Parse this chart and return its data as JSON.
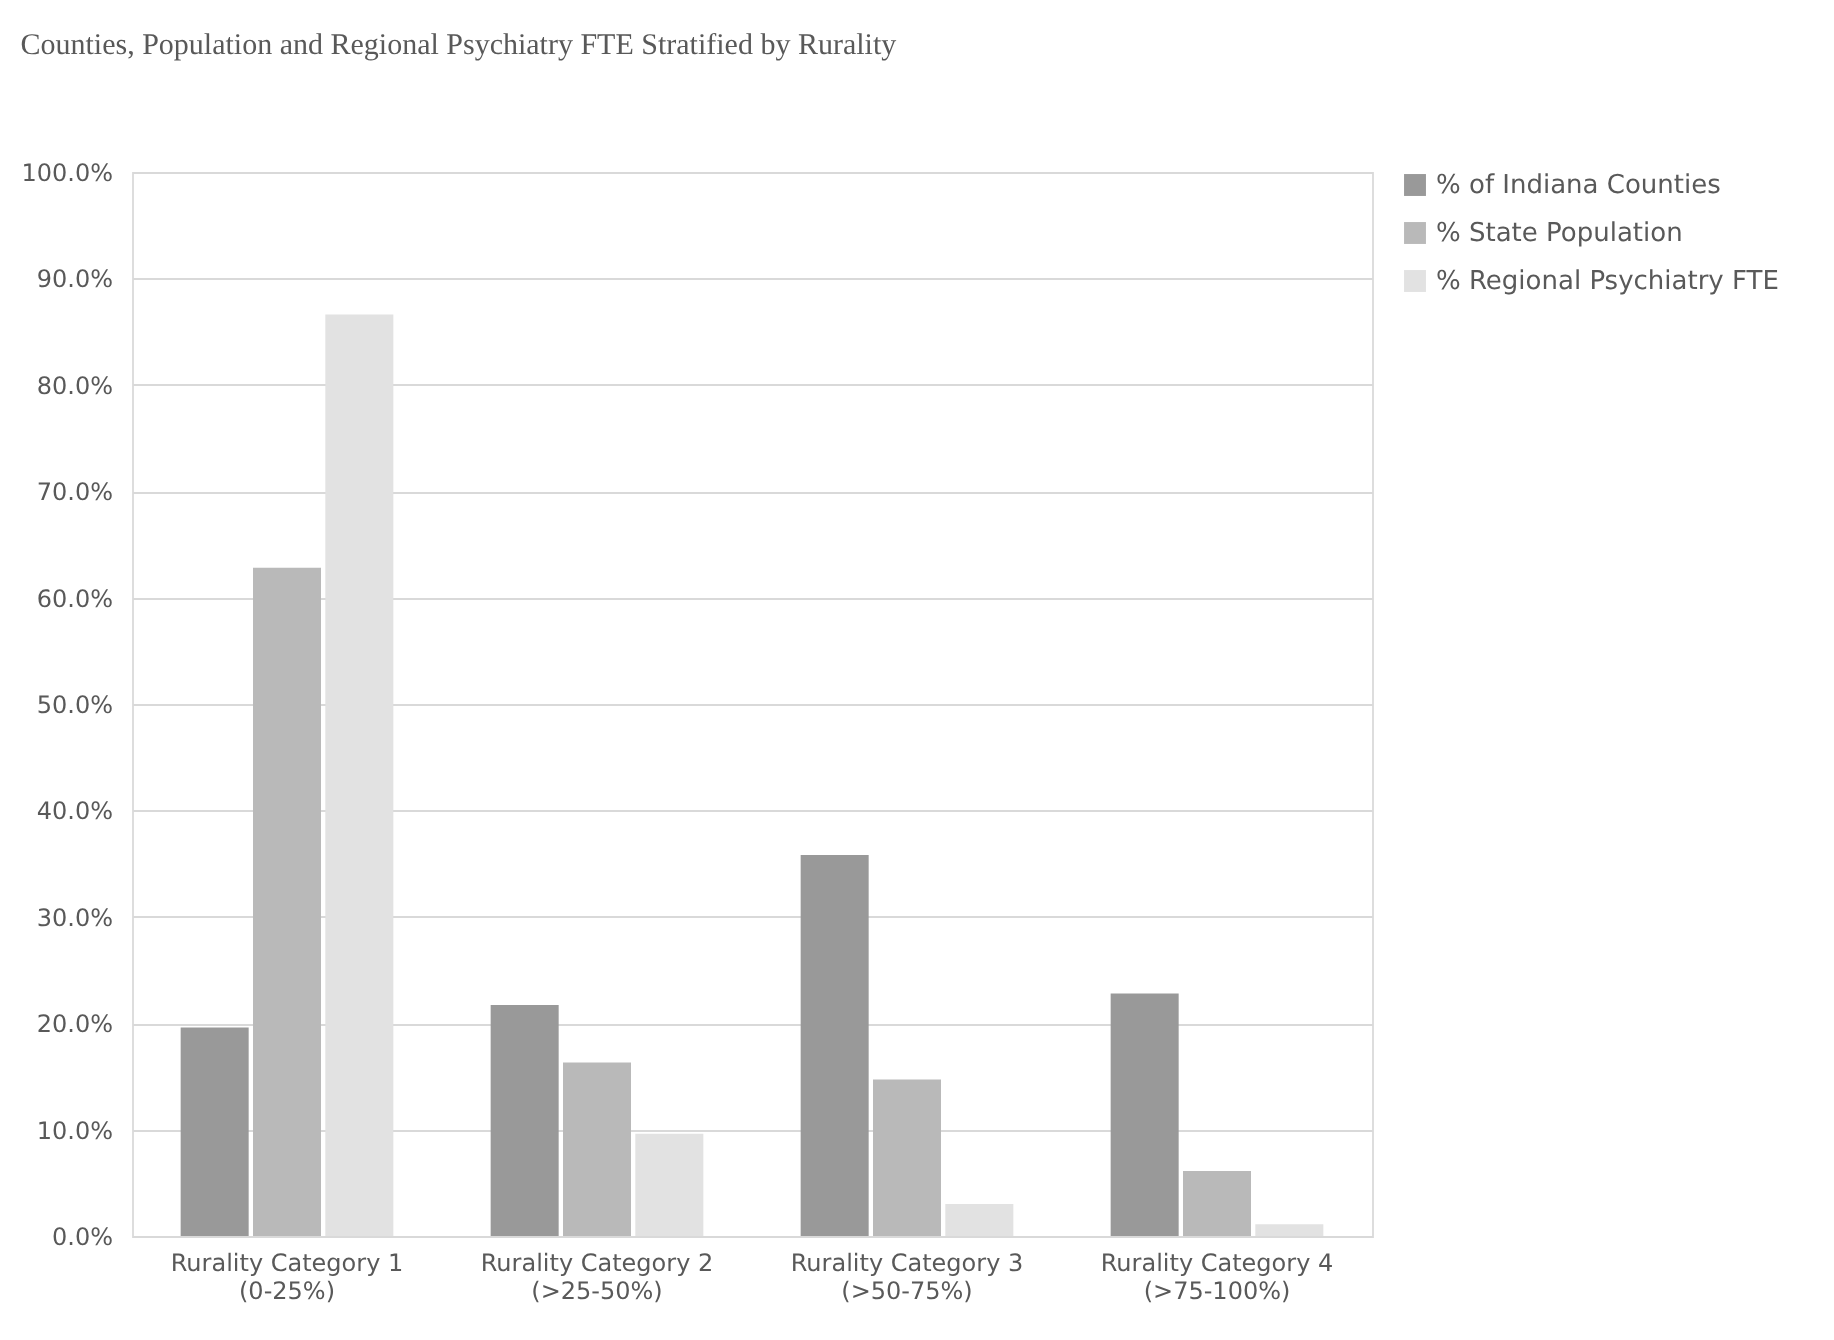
{
  "chart_data": {
    "type": "bar",
    "title": "Counties, Population and Regional Psychiatry FTE Stratified by Rurality",
    "categories": [
      "Rurality Category 1\n(0-25%)",
      "Rurality Category 2\n(>25-50%)",
      "Rurality Category 3\n(>50-75%)",
      "Rurality Category 4\n(>75-100%)"
    ],
    "series": [
      {
        "name": "% of Indiana Counties",
        "color": "#999999",
        "values": [
          19.6,
          21.7,
          35.8,
          22.8
        ]
      },
      {
        "name": "% State Population",
        "color": "#b9b9b9",
        "values": [
          62.8,
          16.3,
          14.7,
          6.1
        ]
      },
      {
        "name": "% Regional Psychiatry FTE",
        "color": "#e2e2e2",
        "values": [
          86.6,
          9.6,
          3.0,
          1.1
        ]
      }
    ],
    "ylim": [
      0,
      100
    ],
    "yticks": [
      {
        "value": 0,
        "label": "0.0%"
      },
      {
        "value": 10,
        "label": "10.0%"
      },
      {
        "value": 20,
        "label": "20.0%"
      },
      {
        "value": 30,
        "label": "30.0%"
      },
      {
        "value": 40,
        "label": "40.0%"
      },
      {
        "value": 50,
        "label": "50.0%"
      },
      {
        "value": 60,
        "label": "60.0%"
      },
      {
        "value": 70,
        "label": "70.0%"
      },
      {
        "value": 80,
        "label": "80.0%"
      },
      {
        "value": 90,
        "label": "90.0%"
      },
      {
        "value": 100,
        "label": "100.0%"
      }
    ],
    "grid": "y",
    "legend": "top right"
  }
}
